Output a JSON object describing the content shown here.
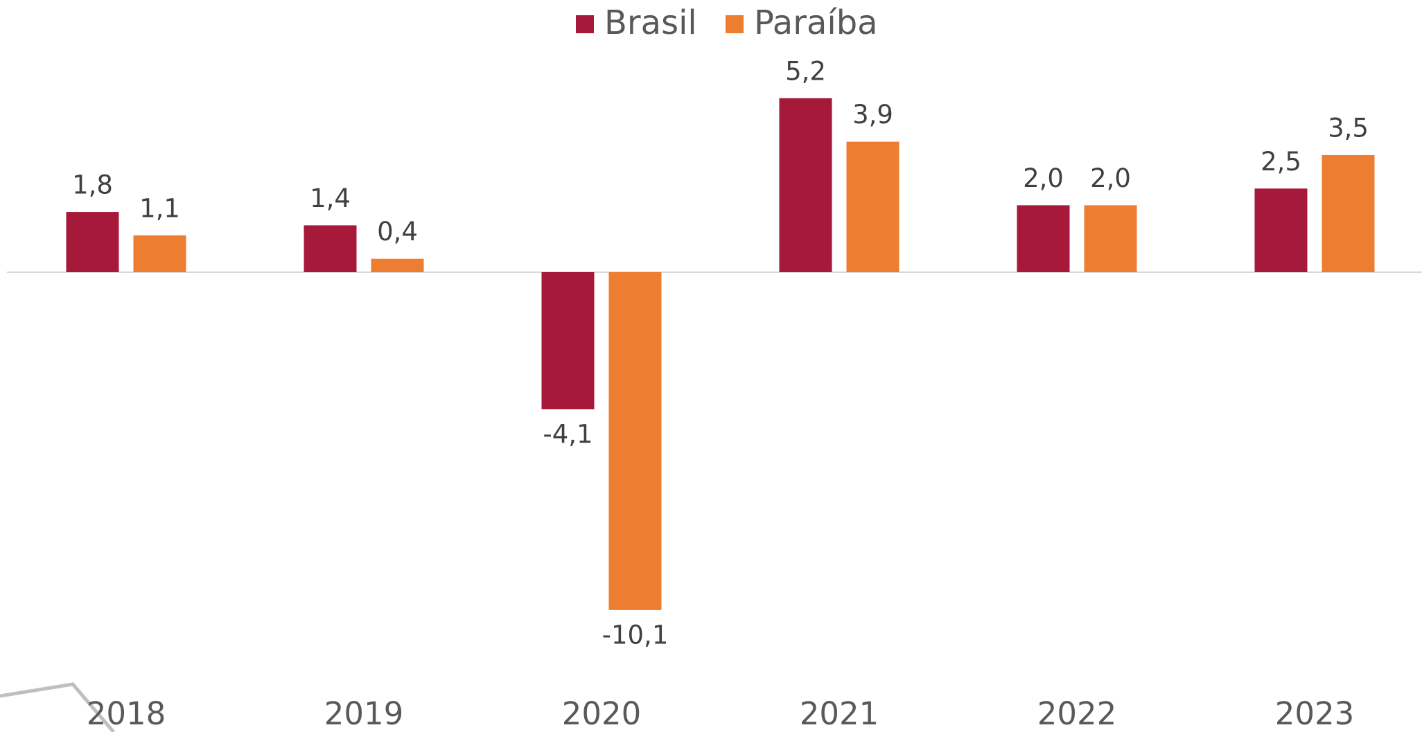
{
  "chart_data": {
    "type": "bar",
    "categories": [
      "2018",
      "2019",
      "2020",
      "2021",
      "2022",
      "2023"
    ],
    "series": [
      {
        "name": "Brasil",
        "color": "#a6193a",
        "values": [
          1.8,
          1.4,
          -4.1,
          5.2,
          2.0,
          2.5
        ],
        "value_labels": [
          "1,8",
          "1,4",
          "-4,1",
          "5,2",
          "2,0",
          "2,5"
        ]
      },
      {
        "name": "Paraíba",
        "color": "#ed7d31",
        "values": [
          1.1,
          0.4,
          -10.1,
          3.9,
          2.0,
          3.5
        ],
        "value_labels": [
          "1,1",
          "0,4",
          "-10,1",
          "3,9",
          "2,0",
          "3,5"
        ]
      }
    ],
    "legend": "top"
  }
}
